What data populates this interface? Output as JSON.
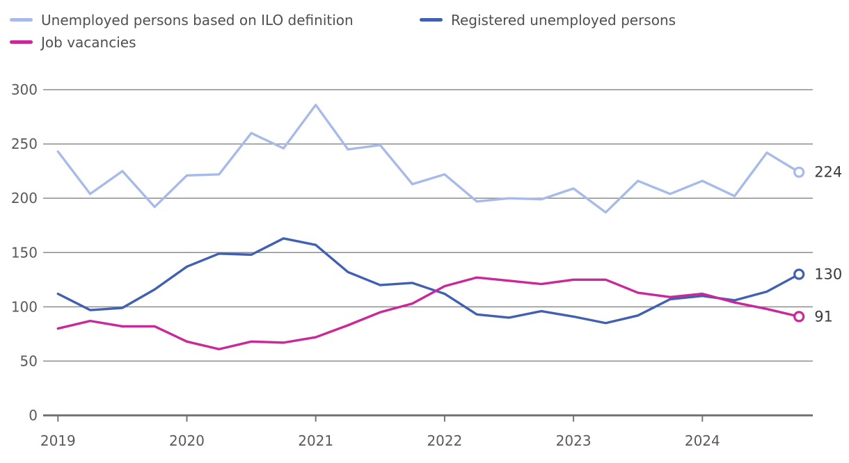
{
  "chart_data": {
    "type": "line",
    "title": "",
    "xlabel": "",
    "ylabel": "",
    "x_frequency": "quarterly",
    "x_year_labels": [
      "2019",
      "2020",
      "2021",
      "2022",
      "2023",
      "2024"
    ],
    "ylim": [
      0,
      300
    ],
    "yticks": [
      0,
      50,
      100,
      150,
      200,
      250,
      300
    ],
    "grid": true,
    "legend_position": "top-left",
    "series": [
      {
        "id": "ilo-unemployed",
        "name": "Unemployed persons based on ILO definition",
        "color": "#a7bae9",
        "end_label": "224",
        "values": [
          243,
          204,
          225,
          192,
          221,
          222,
          260,
          246,
          286,
          245,
          249,
          213,
          222,
          197,
          200,
          199,
          209,
          187,
          216,
          204,
          216,
          202,
          242,
          224
        ]
      },
      {
        "id": "registered-unemployed",
        "name": "Registered unemployed persons",
        "color": "#4160b2",
        "end_label": "130",
        "values": [
          112,
          97,
          99,
          116,
          137,
          149,
          148,
          163,
          157,
          132,
          120,
          122,
          112,
          93,
          90,
          96,
          91,
          85,
          92,
          107,
          110,
          106,
          114,
          130
        ]
      },
      {
        "id": "job-vacancies",
        "name": "Job vacancies",
        "color": "#ca2798",
        "end_label": "91",
        "values": [
          80,
          87,
          82,
          82,
          68,
          61,
          68,
          67,
          72,
          83,
          95,
          103,
          119,
          127,
          124,
          121,
          125,
          125,
          113,
          109,
          112,
          104,
          98,
          91
        ]
      }
    ]
  },
  "colors": {
    "background": "#ffffff",
    "gridline": "#8c8c8c",
    "axis_line": "#757575",
    "tick_label": "#595959",
    "end_label": "#3a3a3a",
    "legend_text": "#4f4f4f"
  }
}
